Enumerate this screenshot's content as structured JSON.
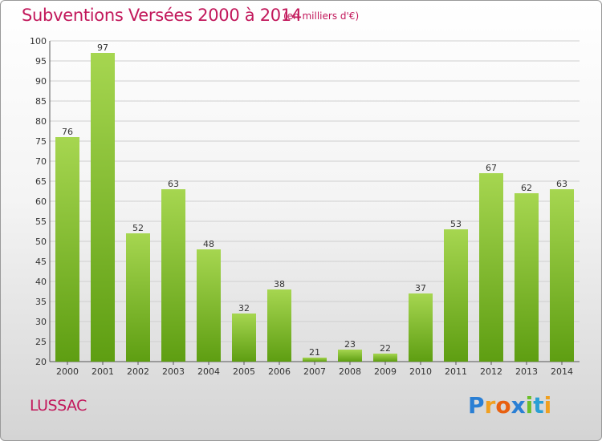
{
  "title": "Subventions Versées 2000 à 2014",
  "unit_note": "(en milliers d'€)",
  "location": "LUSSAC",
  "logo": {
    "letters": [
      "P",
      "r",
      "o",
      "x",
      "i",
      "t",
      "i"
    ],
    "colors": [
      "#2a7fd4",
      "#f0a020",
      "#e86010",
      "#2a7fd4",
      "#6cbf2a",
      "#2a9fd4",
      "#f0a020"
    ]
  },
  "colors": {
    "bar_top": "#a6d650",
    "bar_bottom": "#5e9e12",
    "title": "#c2185b",
    "grid": "#cfcfcf"
  },
  "chart_data": {
    "type": "bar",
    "categories": [
      "2000",
      "2001",
      "2002",
      "2003",
      "2004",
      "2005",
      "2006",
      "2007",
      "2008",
      "2009",
      "2010",
      "2011",
      "2012",
      "2013",
      "2014"
    ],
    "values": [
      76,
      97,
      52,
      63,
      48,
      32,
      38,
      21,
      23,
      22,
      37,
      53,
      67,
      62,
      63
    ],
    "ylim": [
      20,
      100
    ],
    "yticks": [
      20,
      25,
      30,
      35,
      40,
      45,
      50,
      55,
      60,
      65,
      70,
      75,
      80,
      85,
      90,
      95,
      100
    ],
    "grid": true,
    "data_labels": true
  }
}
